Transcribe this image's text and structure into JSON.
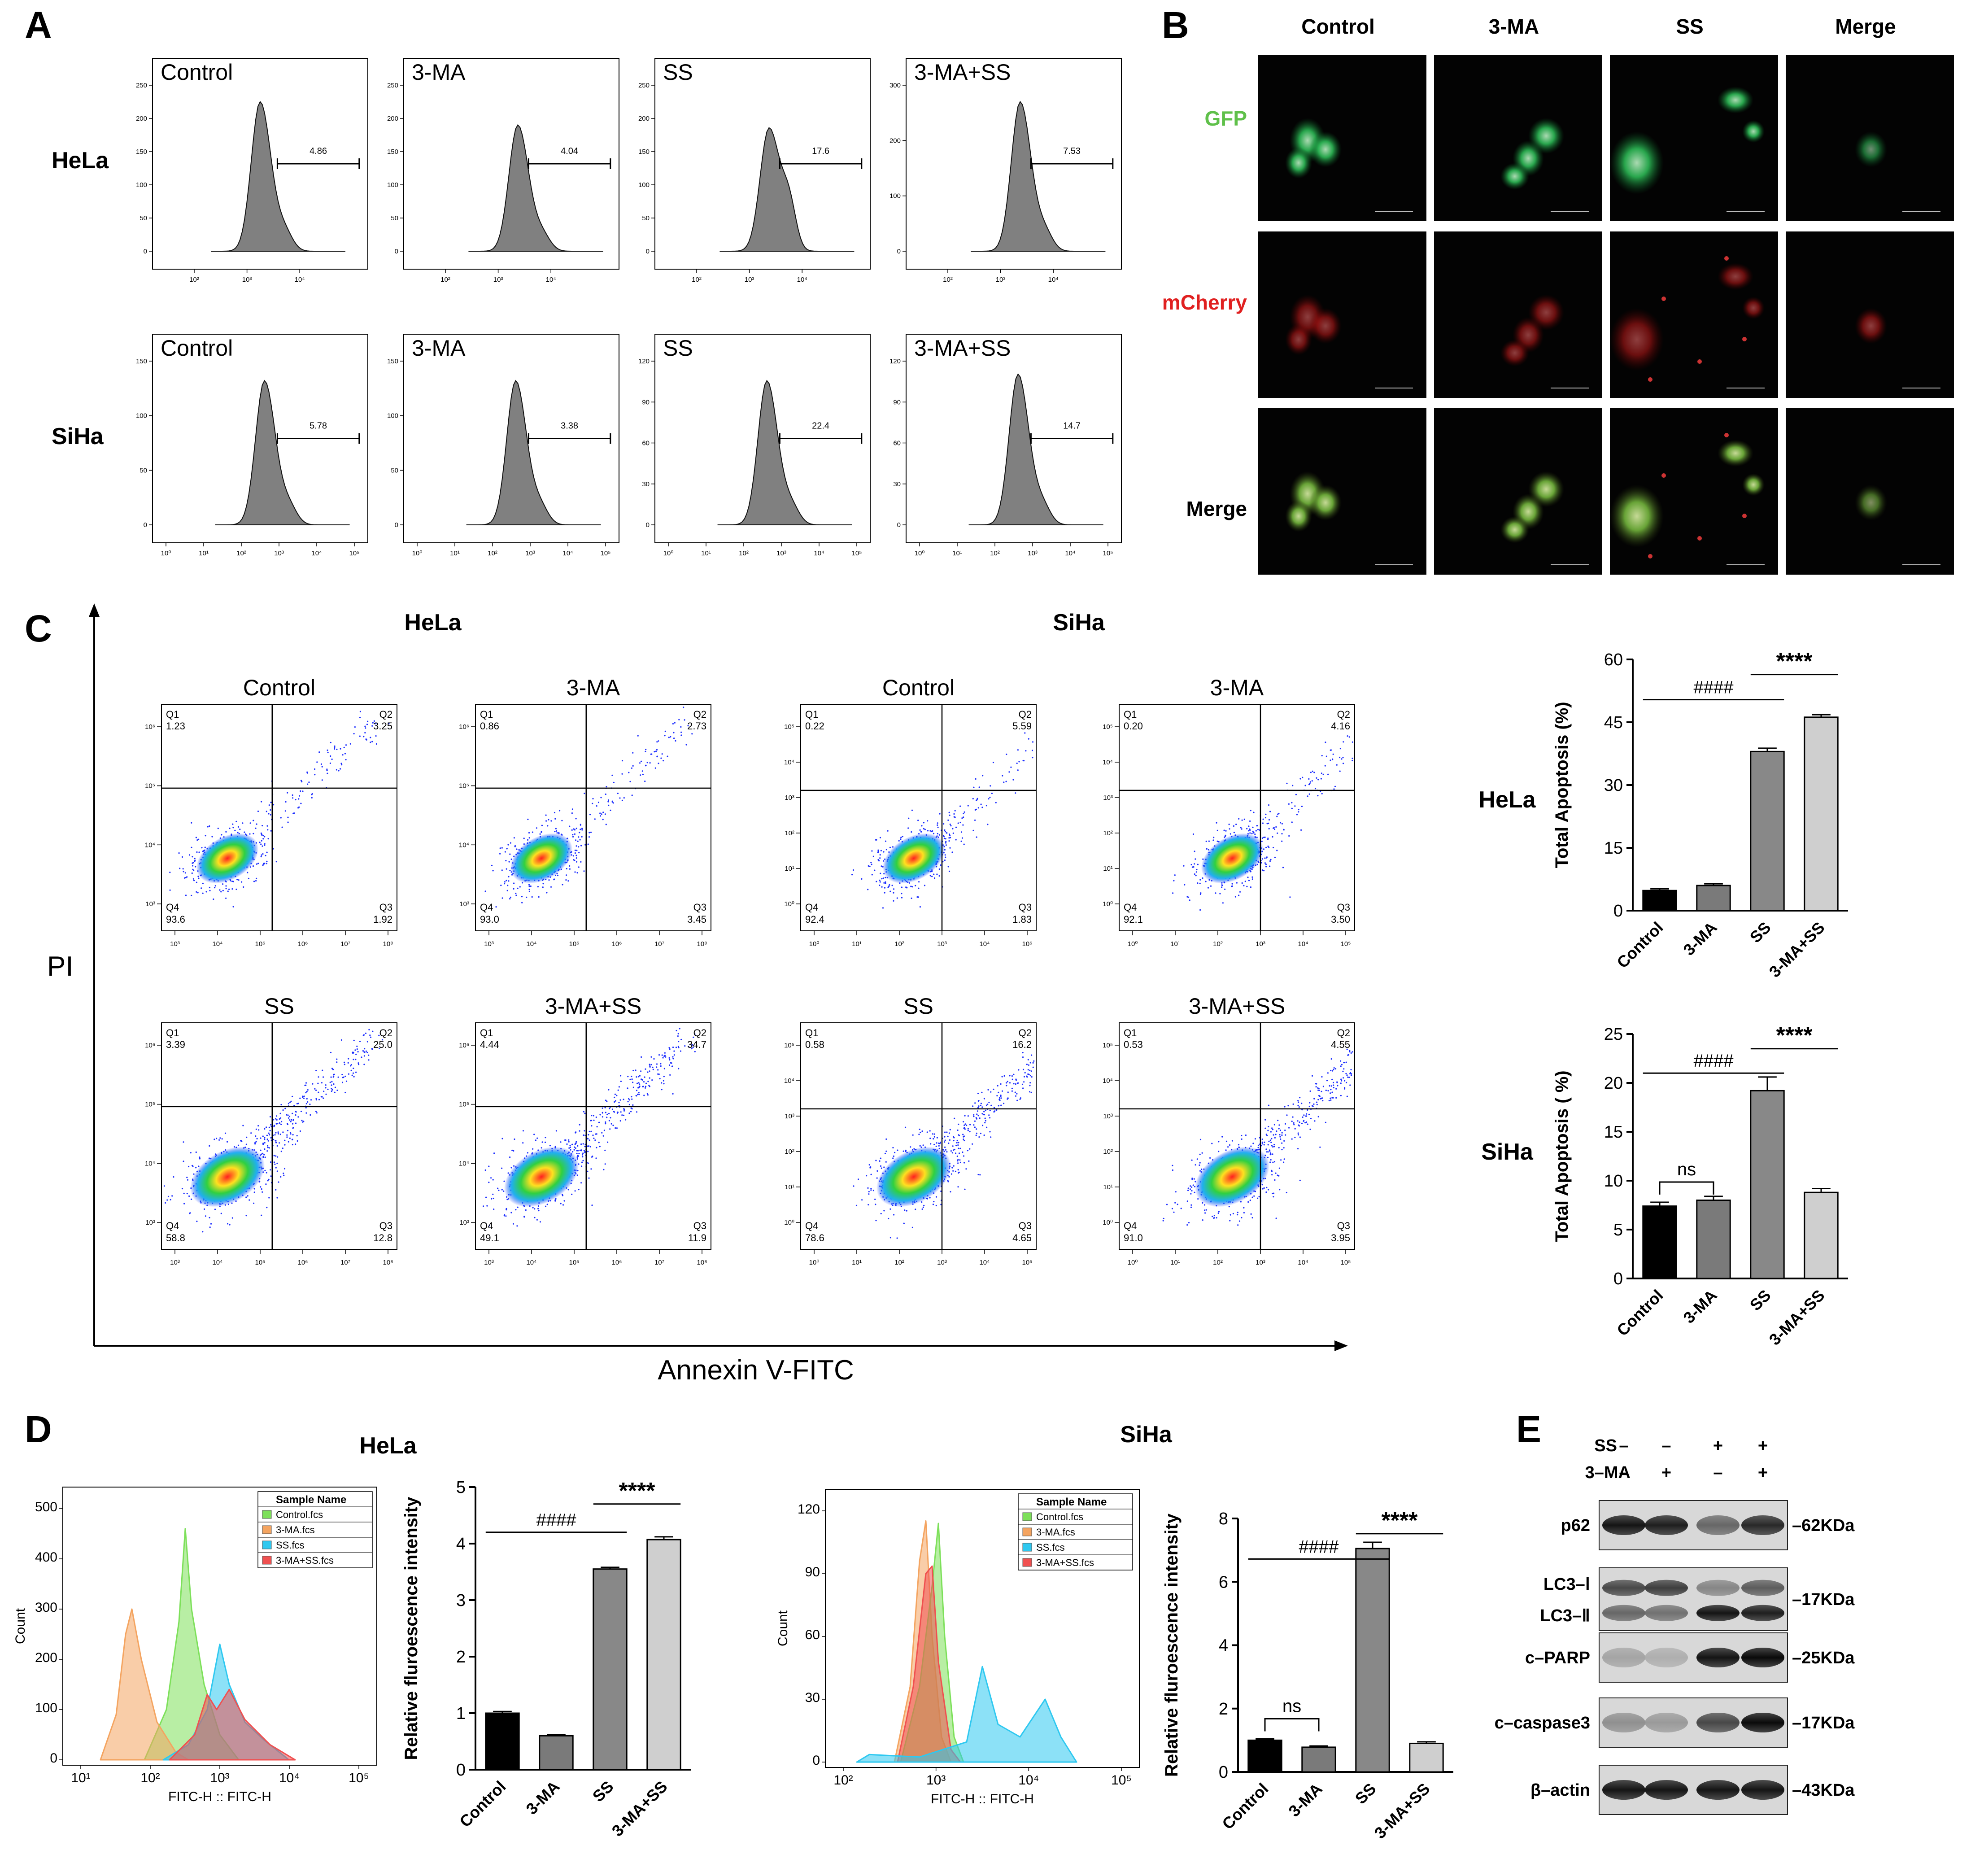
{
  "panel_letters": [
    "A",
    "B",
    "C",
    "D",
    "E"
  ],
  "panel_a": {
    "rows": [
      {
        "cell_line": "HeLa",
        "histos": [
          {
            "condition": "Control",
            "gate_value": "4.86",
            "yticks": [
              "0",
              "50",
              "100",
              "150",
              "200",
              "250"
            ]
          },
          {
            "condition": "3-MA",
            "gate_value": "4.04",
            "yticks": [
              "0",
              "50",
              "100",
              "150",
              "200",
              "250"
            ]
          },
          {
            "condition": "SS",
            "gate_value": "17.6",
            "yticks": [
              "0",
              "50",
              "100",
              "150",
              "200",
              "250"
            ]
          },
          {
            "condition": "3-MA+SS",
            "gate_value": "7.53",
            "yticks": [
              "0",
              "100",
              "200",
              "300"
            ]
          }
        ],
        "xticks": [
          "10²",
          "10³",
          "10⁴"
        ]
      },
      {
        "cell_line": "SiHa",
        "histos": [
          {
            "condition": "Control",
            "gate_value": "5.78",
            "yticks": [
              "0",
              "50",
              "100",
              "150"
            ]
          },
          {
            "condition": "3-MA",
            "gate_value": "3.38",
            "yticks": [
              "0",
              "50",
              "100",
              "150"
            ]
          },
          {
            "condition": "SS",
            "gate_value": "22.4",
            "yticks": [
              "0",
              "30",
              "60",
              "90",
              "120"
            ]
          },
          {
            "condition": "3-MA+SS",
            "gate_value": "14.7",
            "yticks": [
              "0",
              "30",
              "60",
              "90",
              "120"
            ]
          }
        ],
        "xticks": [
          "10⁰",
          "10¹",
          "10²",
          "10³",
          "10⁴",
          "10⁵"
        ]
      }
    ]
  },
  "panel_b": {
    "columns": [
      "Control",
      "3-MA",
      "SS",
      "Merge"
    ],
    "rows": [
      {
        "label": "GFP",
        "label_color": "#5fc04a"
      },
      {
        "label": "mCherry",
        "label_color": "#e02020"
      },
      {
        "label": "Merge",
        "label_color": "#000000"
      }
    ]
  },
  "panel_c": {
    "y_axis_label": "PI",
    "x_axis_label": "Annexin V-FITC",
    "groups": [
      {
        "cell_line": "HeLa",
        "plots": [
          {
            "condition": "Control",
            "q1": "1.23",
            "q2": "3.25",
            "q3": "1.92",
            "q4": "93.6"
          },
          {
            "condition": "3-MA",
            "q1": "0.86",
            "q2": "2.73",
            "q3": "3.45",
            "q4": "93.0"
          },
          {
            "condition": "SS",
            "q1": "3.39",
            "q2": "25.0",
            "q3": "12.8",
            "q4": "58.8"
          },
          {
            "condition": "3-MA+SS",
            "q1": "4.44",
            "q2": "34.7",
            "q3": "11.9",
            "q4": "49.1"
          }
        ],
        "xticks": [
          "10³",
          "10⁴",
          "10⁵",
          "10⁶",
          "10⁷",
          "10⁸"
        ],
        "yticks": [
          "10³",
          "10⁴",
          "10⁵",
          "10⁶"
        ]
      },
      {
        "cell_line": "SiHa",
        "plots": [
          {
            "condition": "Control",
            "q1": "0.22",
            "q2": "5.59",
            "q3": "1.83",
            "q4": "92.4"
          },
          {
            "condition": "3-MA",
            "q1": "0.20",
            "q2": "4.16",
            "q3": "3.50",
            "q4": "92.1"
          },
          {
            "condition": "SS",
            "q1": "0.58",
            "q2": "16.2",
            "q3": "4.65",
            "q4": "78.6"
          },
          {
            "condition": "3-MA+SS",
            "q1": "0.53",
            "q2": "4.55",
            "q3": "3.95",
            "q4": "91.0"
          }
        ],
        "xticks": [
          "10⁰",
          "10¹",
          "10²",
          "10³",
          "10⁴",
          "10⁵"
        ],
        "yticks": [
          "10⁰",
          "10¹",
          "10²",
          "10³",
          "10⁴",
          "10⁵"
        ]
      }
    ],
    "quadrant_names": [
      "Q1",
      "Q2",
      "Q3",
      "Q4"
    ]
  },
  "panel_d": {
    "hela_title": "HeLa",
    "siha_title": "SiHa",
    "flow_xlabel": "FITC-H :: FITC-H",
    "flow_ylabel": "Count",
    "legend_header": "Sample Name",
    "legend": [
      {
        "name": "Control.fcs",
        "color": "#7de05a"
      },
      {
        "name": "3-MA.fcs",
        "color": "#f4a460"
      },
      {
        "name": "SS.fcs",
        "color": "#2ec8f0"
      },
      {
        "name": "3-MA+SS.fcs",
        "color": "#f05050"
      }
    ],
    "hela_flow_yticks": [
      "0",
      "100",
      "200",
      "300",
      "400",
      "500"
    ],
    "hela_flow_xticks": [
      "10¹",
      "10²",
      "10³",
      "10⁴",
      "10⁵"
    ],
    "siha_flow_yticks": [
      "0",
      "30",
      "60",
      "90",
      "120"
    ],
    "siha_flow_xticks": [
      "10²",
      "10³",
      "10⁴",
      "10⁵"
    ]
  },
  "chart_data": [
    {
      "type": "bar",
      "title": "HeLa",
      "categories": [
        "Control",
        "3-MA",
        "SS",
        "3-MA+SS"
      ],
      "values": [
        4.8,
        6.0,
        38.0,
        46.2
      ],
      "errors": [
        0.4,
        0.4,
        0.8,
        0.6
      ],
      "ylabel": "Total Apoptosis (%)",
      "ylim": [
        0,
        60
      ],
      "yticks": [
        "0",
        "15",
        "30",
        "45",
        "60"
      ],
      "significance": [
        {
          "label": "####",
          "from": 0,
          "to": 2
        },
        {
          "label": "****",
          "from": 2,
          "to": 3
        }
      ]
    },
    {
      "type": "bar",
      "title": "SiHa",
      "categories": [
        "Control",
        "3-MA",
        "SS",
        "3-MA+SS"
      ],
      "values": [
        7.4,
        8.0,
        19.2,
        8.8
      ],
      "errors": [
        0.4,
        0.4,
        1.4,
        0.4
      ],
      "ylabel": "Total Apoptosis ( %)",
      "ylim": [
        0,
        25
      ],
      "yticks": [
        "0",
        "5",
        "10",
        "15",
        "20",
        "25"
      ],
      "significance": [
        {
          "label": "####",
          "from": 0,
          "to": 2
        },
        {
          "label": "****",
          "from": 2,
          "to": 3
        },
        {
          "label": "ns",
          "from": 0,
          "to": 1
        }
      ]
    },
    {
      "type": "bar",
      "categories": [
        "Control",
        "3-MA",
        "SS",
        "3-MA+SS"
      ],
      "values": [
        1.0,
        0.6,
        3.55,
        4.07
      ],
      "errors": [
        0.03,
        0.02,
        0.03,
        0.05
      ],
      "ylabel": "Relative fluroescence intensity",
      "ylim": [
        0,
        5
      ],
      "yticks": [
        "0",
        "1",
        "2",
        "3",
        "4",
        "5"
      ],
      "significance": [
        {
          "label": "####",
          "from": 0,
          "to": 2
        },
        {
          "label": "****",
          "from": 2,
          "to": 3
        }
      ]
    },
    {
      "type": "bar",
      "categories": [
        "Control",
        "3-MA",
        "SS",
        "3-MA+SS"
      ],
      "values": [
        1.0,
        0.78,
        7.05,
        0.9
      ],
      "errors": [
        0.04,
        0.04,
        0.2,
        0.05
      ],
      "ylabel": "Relative fluroescence intensity",
      "ylim": [
        0,
        8
      ],
      "yticks": [
        "0",
        "2",
        "4",
        "6",
        "8"
      ],
      "significance": [
        {
          "label": "####",
          "from": 0,
          "to": 2
        },
        {
          "label": "****",
          "from": 2,
          "to": 3
        },
        {
          "label": "ns",
          "from": 0,
          "to": 1
        }
      ]
    }
  ],
  "panel_e": {
    "treatments": [
      {
        "name": "SS",
        "signs": [
          "–",
          "–",
          "+",
          "+"
        ]
      },
      {
        "name": "3–MA",
        "signs": [
          "–",
          "+",
          "–",
          "+"
        ]
      }
    ],
    "blots": [
      {
        "label": "p62",
        "size": "–62KDa"
      },
      {
        "label": "LC3–Ⅰ",
        "label2": "LC3–Ⅱ",
        "size": "–17KDa"
      },
      {
        "label": "c–PARP",
        "size": "–25KDa"
      },
      {
        "label": "c–caspase3",
        "size": "–17KDa"
      },
      {
        "label": "β–actin",
        "size": "–43KDa"
      }
    ]
  },
  "colors": {
    "bar_fills": [
      "#000000",
      "#7a7a7a",
      "#888888",
      "#cfcfcf"
    ],
    "histogram_fill": "#808080",
    "gfp": "#36b45a",
    "mcherry": "#d82020"
  }
}
